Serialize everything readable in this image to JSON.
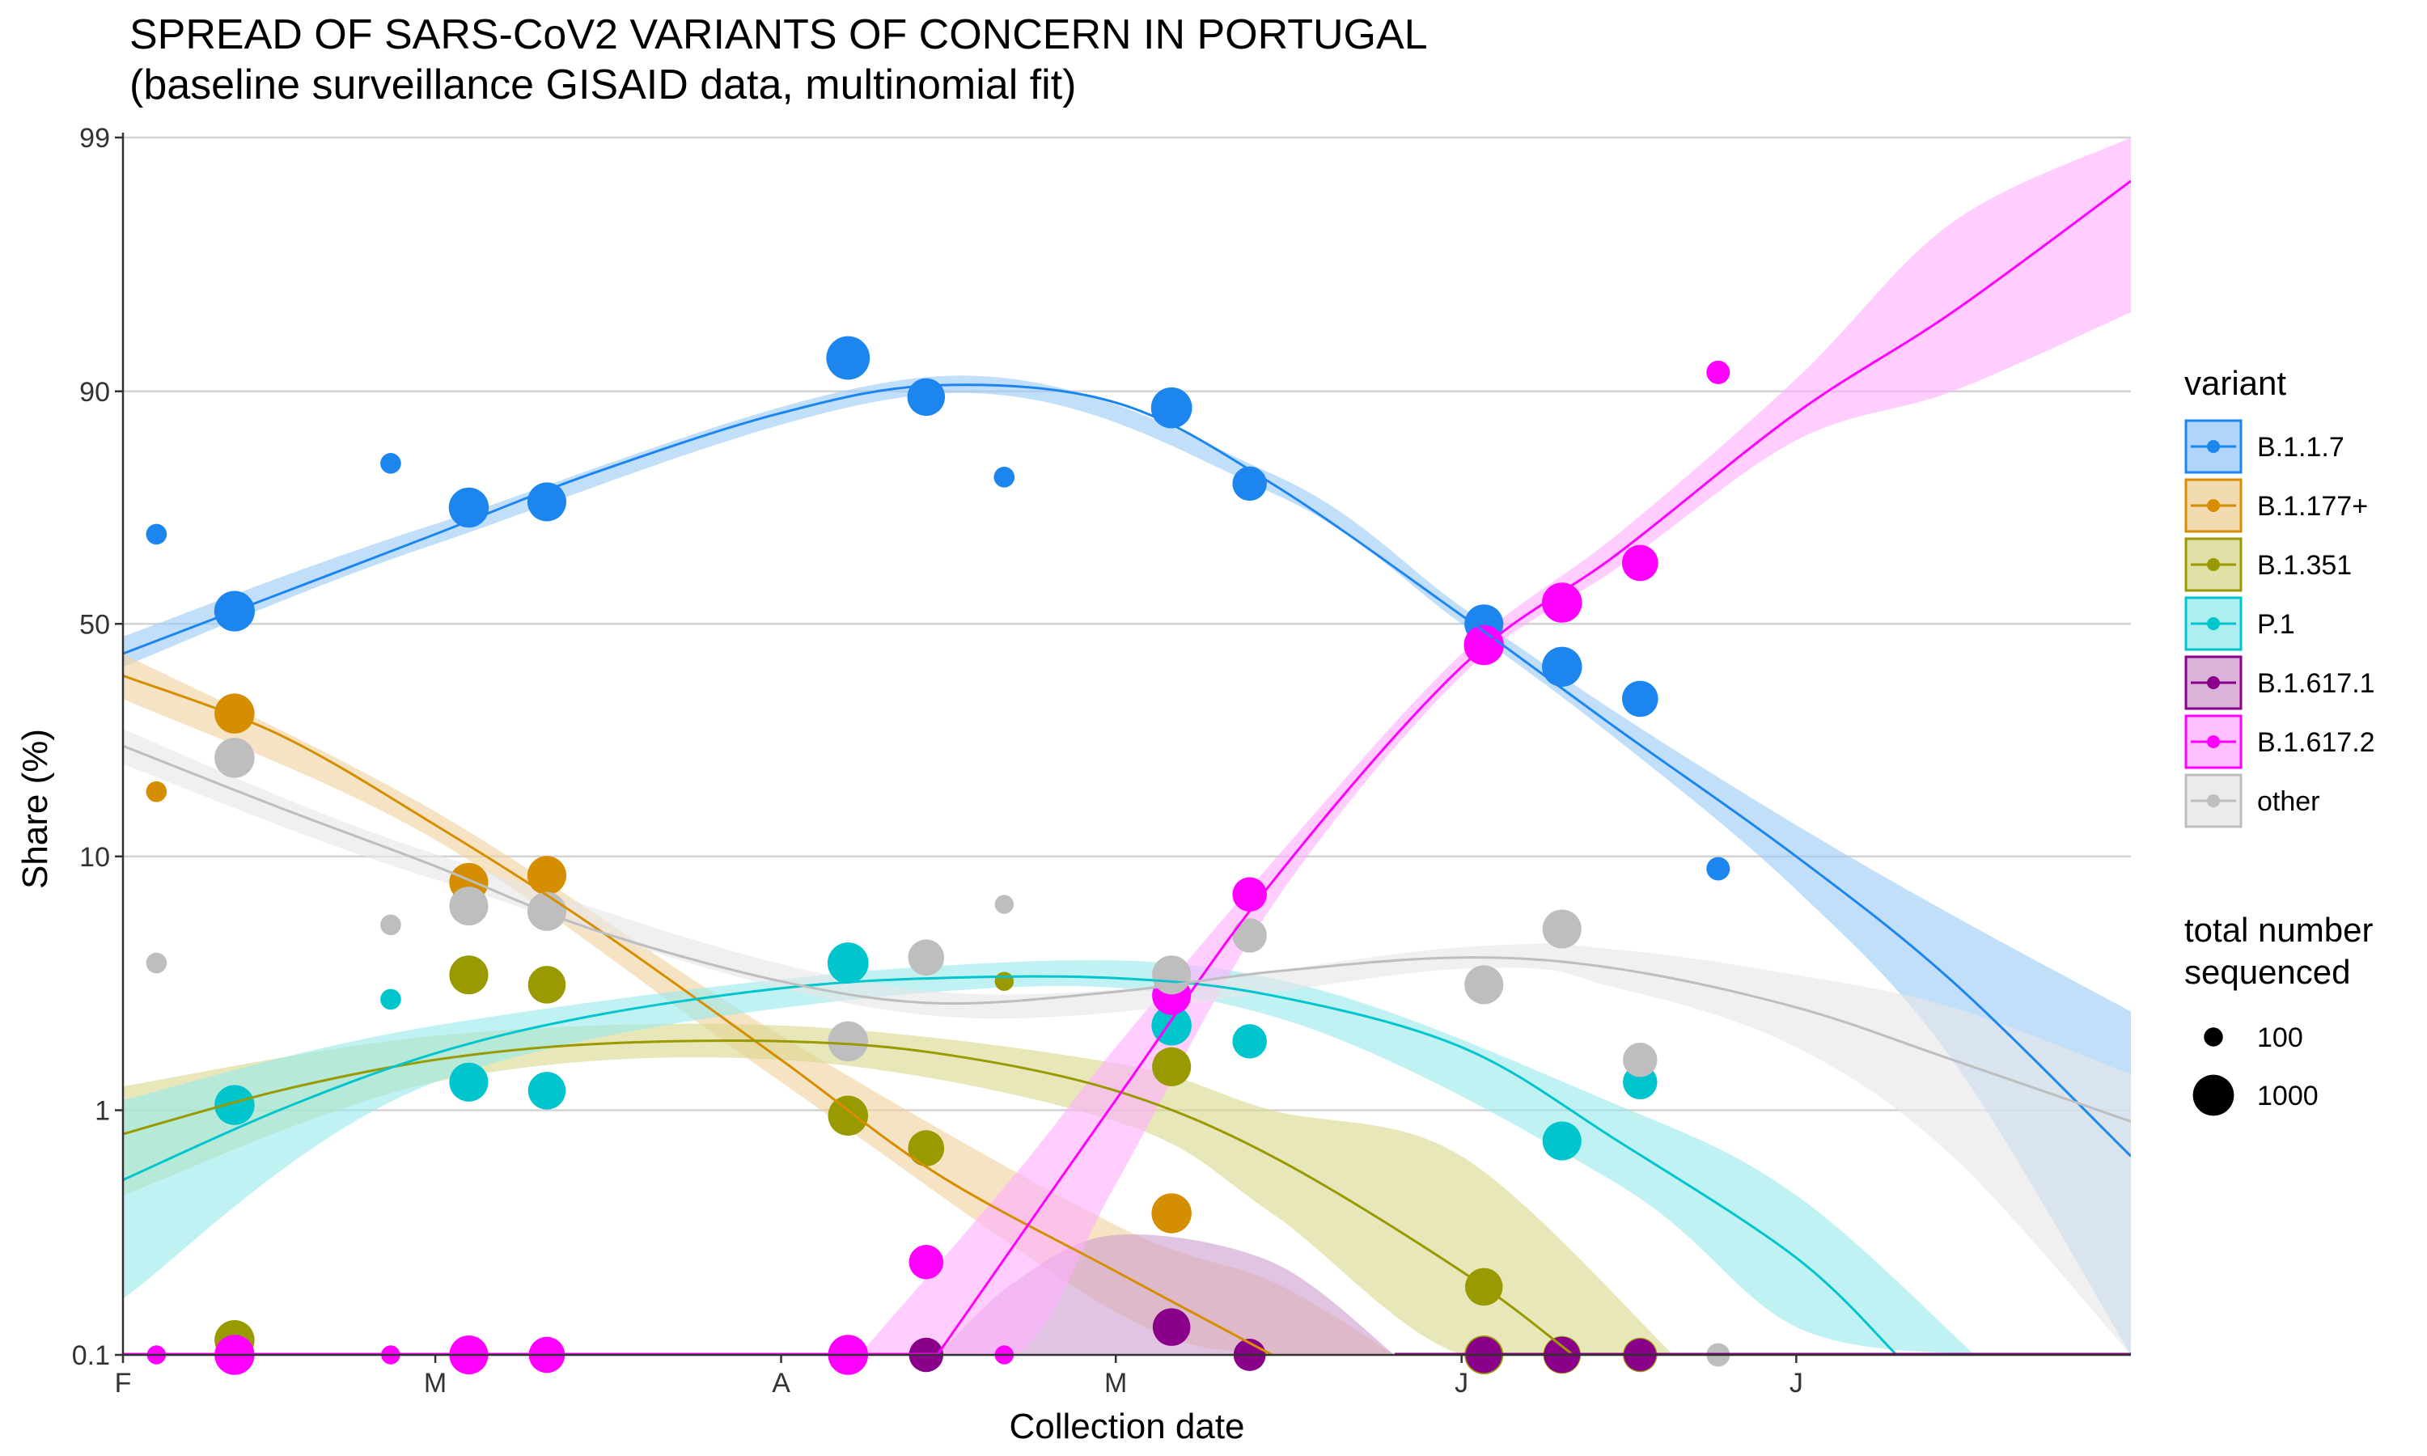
{
  "chart_data": {
    "type": "scatter",
    "title": "SPREAD OF SARS-CoV2 VARIANTS OF CONCERN IN PORTUGAL",
    "subtitle": "(baseline surveillance GISAID data, multinomial fit)",
    "xlabel": "Collection date",
    "ylabel": "Share (%)",
    "y_scale": "logit",
    "grid": "horizontal major lines",
    "legend_position": "right",
    "xlim": [
      "2021-02-01",
      "2021-07-31"
    ],
    "ylim": [
      0.1,
      99
    ],
    "x_ticks": [
      {
        "date": "2021-02-01",
        "label": "F"
      },
      {
        "date": "2021-03-01",
        "label": "M"
      },
      {
        "date": "2021-04-01",
        "label": "A"
      },
      {
        "date": "2021-05-01",
        "label": "M"
      },
      {
        "date": "2021-06-01",
        "label": "J"
      },
      {
        "date": "2021-07-01",
        "label": "J"
      }
    ],
    "y_ticks": [
      {
        "value": 0.1,
        "label": "0.1"
      },
      {
        "value": 1,
        "label": "1"
      },
      {
        "value": 10,
        "label": "10"
      },
      {
        "value": 50,
        "label": "50"
      },
      {
        "value": 90,
        "label": "90"
      },
      {
        "value": 99,
        "label": "99"
      }
    ],
    "legend_title": "variant",
    "size_legend_title": [
      "total number",
      "sequenced"
    ],
    "size_legend": [
      {
        "label": "100",
        "n": 100
      },
      {
        "label": "1000",
        "n": 1000
      }
    ],
    "series": [
      {
        "name": "B.1.1.7",
        "color": "#1C86EE",
        "fill": "#9DCBF7",
        "points": [
          [
            "2021-02-04",
            70,
            120
          ],
          [
            "2021-02-11",
            53,
            950
          ],
          [
            "2021-02-25",
            82,
            120
          ],
          [
            "2021-03-04",
            75,
            900
          ],
          [
            "2021-03-11",
            76,
            800
          ],
          [
            "2021-04-07",
            92.5,
            1300
          ],
          [
            "2021-04-14",
            89.5,
            700
          ],
          [
            "2021-04-21",
            80,
            120
          ],
          [
            "2021-05-06",
            88.5,
            1000
          ],
          [
            "2021-05-13",
            79,
            500
          ],
          [
            "2021-06-03",
            50,
            800
          ],
          [
            "2021-06-10",
            40,
            900
          ],
          [
            "2021-06-17",
            33,
            600
          ],
          [
            "2021-06-24",
            9,
            160
          ]
        ],
        "fit": [
          [
            "2021-02-01",
            43
          ],
          [
            "2021-02-15",
            57
          ],
          [
            "2021-03-01",
            70
          ],
          [
            "2021-03-15",
            80.5
          ],
          [
            "2021-04-01",
            88
          ],
          [
            "2021-04-15",
            90.5
          ],
          [
            "2021-05-01",
            89
          ],
          [
            "2021-05-15",
            79
          ],
          [
            "2021-06-01",
            52
          ],
          [
            "2021-06-15",
            27
          ],
          [
            "2021-07-01",
            10
          ],
          [
            "2021-07-15",
            3.3
          ],
          [
            "2021-07-31",
            0.65
          ]
        ],
        "ci": [
          [
            "2021-02-01",
            40,
            47
          ],
          [
            "2021-03-01",
            68,
            72
          ],
          [
            "2021-04-15",
            89.8,
            91.2
          ],
          [
            "2021-05-15",
            77.5,
            80.5
          ],
          [
            "2021-06-01",
            50,
            54
          ],
          [
            "2021-06-15",
            25,
            30
          ],
          [
            "2021-07-01",
            7.5,
            13
          ],
          [
            "2021-07-15",
            1.6,
            6
          ],
          [
            "2021-07-31",
            0.1,
            2.5
          ]
        ]
      },
      {
        "name": "B.1.177+",
        "color": "#D58E00",
        "fill": "#F0D29E",
        "points": [
          [
            "2021-02-04",
            17,
            120
          ],
          [
            "2021-02-11",
            30,
            900
          ],
          [
            "2021-03-04",
            8,
            800
          ],
          [
            "2021-03-11",
            8.5,
            800
          ],
          [
            "2021-05-06",
            0.38,
            900
          ]
        ],
        "fit": [
          [
            "2021-02-01",
            38
          ],
          [
            "2021-02-15",
            26
          ],
          [
            "2021-03-01",
            13
          ],
          [
            "2021-03-15",
            5.5
          ],
          [
            "2021-04-01",
            1.6
          ],
          [
            "2021-04-15",
            0.55
          ],
          [
            "2021-05-01",
            0.22
          ],
          [
            "2021-05-15",
            0.1
          ]
        ],
        "ci": [
          [
            "2021-02-01",
            33,
            43
          ],
          [
            "2021-03-01",
            11.5,
            14.5
          ],
          [
            "2021-04-01",
            1.3,
            2
          ],
          [
            "2021-05-01",
            0.15,
            0.34
          ],
          [
            "2021-05-15",
            0.1,
            0.2
          ],
          [
            "2021-05-26",
            0.1,
            0.1
          ]
        ]
      },
      {
        "name": "B.1.351",
        "color": "#999900",
        "fill": "#D8D890",
        "points": [
          [
            "2021-02-11",
            0.115,
            900
          ],
          [
            "2021-03-04",
            3.5,
            800
          ],
          [
            "2021-03-11",
            3.2,
            700
          ],
          [
            "2021-04-07",
            0.95,
            900
          ],
          [
            "2021-04-14",
            0.7,
            600
          ],
          [
            "2021-04-21",
            3.3,
            100
          ],
          [
            "2021-05-06",
            1.5,
            800
          ],
          [
            "2021-06-03",
            0.19,
            700
          ],
          [
            "2021-06-03",
            0.1,
            800
          ],
          [
            "2021-06-10",
            0.1,
            700
          ],
          [
            "2021-06-17",
            0.1,
            500
          ]
        ],
        "fit": [
          [
            "2021-02-01",
            0.8
          ],
          [
            "2021-02-15",
            1.2
          ],
          [
            "2021-03-01",
            1.6
          ],
          [
            "2021-03-15",
            1.85
          ],
          [
            "2021-04-01",
            1.9
          ],
          [
            "2021-04-15",
            1.7
          ],
          [
            "2021-05-01",
            1.2
          ],
          [
            "2021-05-15",
            0.65
          ],
          [
            "2021-06-01",
            0.22
          ],
          [
            "2021-06-11",
            0.1
          ]
        ],
        "ci": [
          [
            "2021-02-01",
            0.45,
            1.25
          ],
          [
            "2021-03-01",
            1.3,
            2
          ],
          [
            "2021-04-01",
            1.6,
            2.2
          ],
          [
            "2021-05-01",
            0.9,
            1.55
          ],
          [
            "2021-05-15",
            0.38,
            1
          ],
          [
            "2021-06-01",
            0.1,
            0.65
          ],
          [
            "2021-06-20",
            0.1,
            0.1
          ]
        ]
      },
      {
        "name": "P.1",
        "color": "#00C5CD",
        "fill": "#9AEAEC",
        "points": [
          [
            "2021-02-11",
            1.05,
            900
          ],
          [
            "2021-02-25",
            2.8,
            120
          ],
          [
            "2021-03-04",
            1.3,
            800
          ],
          [
            "2021-03-11",
            1.2,
            700
          ],
          [
            "2021-04-07",
            3.9,
            1000
          ],
          [
            "2021-05-06",
            2.2,
            900
          ],
          [
            "2021-05-13",
            1.9,
            500
          ],
          [
            "2021-06-10",
            0.75,
            800
          ],
          [
            "2021-06-17",
            1.3,
            500
          ]
        ],
        "fit": [
          [
            "2021-02-01",
            0.52
          ],
          [
            "2021-02-15",
            1.0
          ],
          [
            "2021-03-01",
            1.7
          ],
          [
            "2021-03-15",
            2.4
          ],
          [
            "2021-04-01",
            3.1
          ],
          [
            "2021-04-15",
            3.4
          ],
          [
            "2021-05-01",
            3.4
          ],
          [
            "2021-05-15",
            2.9
          ],
          [
            "2021-06-01",
            1.8
          ],
          [
            "2021-06-15",
            0.75
          ],
          [
            "2021-07-01",
            0.25
          ],
          [
            "2021-07-10",
            0.1
          ]
        ],
        "ci": [
          [
            "2021-02-01",
            0.17,
            1.1
          ],
          [
            "2021-03-01",
            1.3,
            2.2
          ],
          [
            "2021-04-15",
            3,
            3.8
          ],
          [
            "2021-05-15",
            2.4,
            3.4
          ],
          [
            "2021-06-15",
            0.5,
            1.05
          ],
          [
            "2021-07-01",
            0.13,
            0.45
          ],
          [
            "2021-07-17",
            0.1,
            0.1
          ]
        ]
      },
      {
        "name": "B.1.617.1",
        "color": "#8B008B",
        "fill": "#CFA0CF",
        "points": [
          [
            "2021-04-14",
            0.1,
            500
          ],
          [
            "2021-05-06",
            0.13,
            700
          ],
          [
            "2021-05-13",
            0.1,
            400
          ],
          [
            "2021-06-03",
            0.1,
            600
          ],
          [
            "2021-06-10",
            0.1,
            600
          ],
          [
            "2021-06-17",
            0.1,
            400
          ]
        ],
        "fit": [],
        "ci": [
          [
            "2021-04-15",
            0.1,
            0.1
          ],
          [
            "2021-04-22",
            0.1,
            0.2
          ],
          [
            "2021-05-01",
            0.1,
            0.31
          ],
          [
            "2021-05-15",
            0.1,
            0.24
          ],
          [
            "2021-05-26",
            0.1,
            0.1
          ]
        ]
      },
      {
        "name": "B.1.617.2",
        "color": "#FF00FF",
        "fill": "#FFB0FF",
        "points": [
          [
            "2021-02-04",
            0.1,
            100
          ],
          [
            "2021-02-11",
            0.1,
            900
          ],
          [
            "2021-02-25",
            0.1,
            100
          ],
          [
            "2021-03-04",
            0.1,
            800
          ],
          [
            "2021-03-11",
            0.1,
            600
          ],
          [
            "2021-04-07",
            0.1,
            900
          ],
          [
            "2021-04-14",
            0.24,
            500
          ],
          [
            "2021-04-21",
            0.1,
            100
          ],
          [
            "2021-05-06",
            2.9,
            800
          ],
          [
            "2021-05-13",
            7.2,
            500
          ],
          [
            "2021-06-03",
            45,
            900
          ],
          [
            "2021-06-10",
            55,
            900
          ],
          [
            "2021-06-17",
            64,
            600
          ],
          [
            "2021-06-24",
            91.5,
            160
          ]
        ],
        "fit": [
          [
            "2021-04-15",
            0.1
          ],
          [
            "2021-05-01",
            1.1
          ],
          [
            "2021-05-15",
            8
          ],
          [
            "2021-06-01",
            40
          ],
          [
            "2021-06-15",
            66
          ],
          [
            "2021-07-01",
            88
          ],
          [
            "2021-07-15",
            95
          ],
          [
            "2021-07-31",
            98.5
          ]
        ],
        "ci": [
          [
            "2021-04-08",
            0.1,
            0.1
          ],
          [
            "2021-04-22",
            0.1,
            0.55
          ],
          [
            "2021-05-01",
            0.5,
            1.8
          ],
          [
            "2021-05-15",
            6.5,
            9.5
          ],
          [
            "2021-06-01",
            38,
            43
          ],
          [
            "2021-06-15",
            63,
            70
          ],
          [
            "2021-07-01",
            85,
            91
          ],
          [
            "2021-07-15",
            90,
            97.8
          ],
          [
            "2021-07-31",
            95,
            99
          ]
        ]
      },
      {
        "name": "other",
        "color": "#BEBEBE",
        "fill": "#E6E6E6",
        "points": [
          [
            "2021-02-04",
            3.9,
            120
          ],
          [
            "2021-02-11",
            22,
            900
          ],
          [
            "2021-02-25",
            5.5,
            120
          ],
          [
            "2021-03-04",
            6.5,
            800
          ],
          [
            "2021-03-11",
            6.2,
            800
          ],
          [
            "2021-04-07",
            1.9,
            900
          ],
          [
            "2021-04-14",
            4.1,
            600
          ],
          [
            "2021-04-21",
            6.6,
            100
          ],
          [
            "2021-05-06",
            3.5,
            800
          ],
          [
            "2021-05-13",
            5,
            500
          ],
          [
            "2021-06-03",
            3.2,
            800
          ],
          [
            "2021-06-10",
            5.3,
            800
          ],
          [
            "2021-06-17",
            1.6,
            500
          ],
          [
            "2021-06-24",
            0.1,
            160
          ]
        ],
        "fit": [
          [
            "2021-02-01",
            24
          ],
          [
            "2021-02-15",
            15
          ],
          [
            "2021-03-01",
            9.2
          ],
          [
            "2021-03-15",
            5.3
          ],
          [
            "2021-04-01",
            3.3
          ],
          [
            "2021-04-15",
            2.7
          ],
          [
            "2021-05-01",
            3.0
          ],
          [
            "2021-05-15",
            3.6
          ],
          [
            "2021-06-01",
            4.1
          ],
          [
            "2021-06-15",
            3.7
          ],
          [
            "2021-07-01",
            2.6
          ],
          [
            "2021-07-15",
            1.6
          ],
          [
            "2021-07-31",
            0.9
          ]
        ],
        "ci": [
          [
            "2021-02-01",
            21,
            27
          ],
          [
            "2021-03-01",
            8.2,
            10.2
          ],
          [
            "2021-04-15",
            2.4,
            3
          ],
          [
            "2021-06-01",
            3.7,
            4.5
          ],
          [
            "2021-06-15",
            3.1,
            4.4
          ],
          [
            "2021-07-01",
            1.8,
            3.5
          ],
          [
            "2021-07-15",
            0.65,
            2.6
          ],
          [
            "2021-07-31",
            0.1,
            1.4
          ]
        ]
      }
    ]
  }
}
